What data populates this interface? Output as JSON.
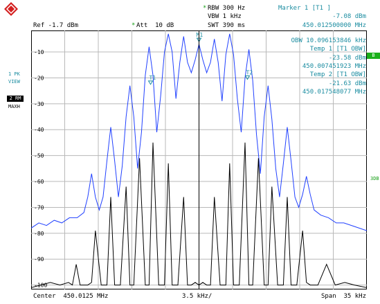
{
  "header": {
    "rbw_star": "*",
    "rbw": "RBW 300 Hz",
    "vbw": "VBW 1 kHz",
    "swt": "SWT 390 ms",
    "ref": "Ref -1.7 dBm",
    "att_star": "*",
    "att": "Att  10 dB"
  },
  "marker": {
    "title": "Marker 1 [T1 ]",
    "level": "-7.08 dBm",
    "freq": "450.012500000 MHz"
  },
  "obw": {
    "line1": "OBW 10.096153846 kHz",
    "line2": "Temp 1 [T1 OBW]",
    "line3": "-23.58 dBm",
    "line4": "450.007451923 MHz",
    "line5": "Temp 2 [T1 OBW]",
    "line6": "-21.63 dBm",
    "line7": "450.017548077 MHz"
  },
  "left_labels": {
    "trace1_a": "1 PK",
    "trace1_b": "VIEW",
    "trace2_a": "2 RM",
    "trace2_b": "MAXH"
  },
  "right_labels": {
    "b": "B",
    "db": "3DB"
  },
  "footer": {
    "center": "Center  450.0125 MHz",
    "div": "3.5 kHz/",
    "span": "Span  35 kHz"
  },
  "chart_data": {
    "type": "line",
    "title": "",
    "xlabel": "",
    "ylabel": "",
    "xlim": [
      -17.5,
      17.5
    ],
    "ylim": [
      -101.7,
      -1.7
    ],
    "y_ticks": [
      -10,
      -20,
      -30,
      -40,
      -50,
      -60,
      -70,
      -80,
      -90,
      -100
    ],
    "y_tick_labels": [
      "-10",
      "-20",
      "-30",
      "-40",
      "-50",
      "-60",
      "-70",
      "-80",
      "-90",
      "-100"
    ],
    "grid": true,
    "series": [
      {
        "name": "1 PK VIEW",
        "color": "#2040ff",
        "x": [
          -17.5,
          -16.7,
          -15.9,
          -15.1,
          -14.3,
          -13.5,
          -12.7,
          -12.0,
          -11.6,
          -11.2,
          -10.8,
          -10.4,
          -10.0,
          -9.6,
          -9.2,
          -8.8,
          -8.4,
          -8.0,
          -7.6,
          -7.2,
          -6.8,
          -6.4,
          -6.0,
          -5.6,
          -5.2,
          -4.8,
          -4.4,
          -4.0,
          -3.6,
          -3.2,
          -2.8,
          -2.4,
          -2.0,
          -1.6,
          -1.2,
          -0.8,
          -0.4,
          0.0,
          0.4,
          0.8,
          1.2,
          1.6,
          2.0,
          2.4,
          2.8,
          3.2,
          3.6,
          4.0,
          4.4,
          4.8,
          5.2,
          5.6,
          6.0,
          6.4,
          6.8,
          7.2,
          7.6,
          8.0,
          8.4,
          8.8,
          9.2,
          9.6,
          10.0,
          10.4,
          10.8,
          11.2,
          11.6,
          12.0,
          12.7,
          13.5,
          14.3,
          15.1,
          15.9,
          16.7,
          17.5
        ],
        "y": [
          -78,
          -76,
          -77,
          -75,
          -76,
          -74,
          -74,
          -72,
          -66,
          -57,
          -66,
          -71,
          -66,
          -52,
          -39,
          -52,
          -66,
          -54,
          -35,
          -23,
          -35,
          -55,
          -41,
          -19,
          -8,
          -19,
          -41,
          -27,
          -10,
          -3,
          -10,
          -28,
          -14,
          -4,
          -14,
          -18,
          -13,
          -7,
          -13,
          -18,
          -14,
          -5,
          -14,
          -29,
          -11,
          -3,
          -11,
          -28,
          -41,
          -20,
          -9,
          -21,
          -42,
          -57,
          -35,
          -23,
          -36,
          -55,
          -66,
          -53,
          -39,
          -52,
          -66,
          -70,
          -65,
          -58,
          -65,
          -71,
          -73,
          -74,
          -76,
          -76,
          -77,
          -78,
          -79
        ]
      },
      {
        "name": "2 RM MAXH",
        "color": "#000000",
        "x": [
          -17.5,
          -16.5,
          -15.5,
          -14.5,
          -13.6,
          -13.2,
          -12.8,
          -12.4,
          -11.6,
          -11.2,
          -10.8,
          -10.2,
          -9.6,
          -9.2,
          -8.8,
          -8.2,
          -7.6,
          -7.2,
          -6.8,
          -6.2,
          -5.6,
          -5.2,
          -4.8,
          -4.2,
          -3.6,
          -3.2,
          -2.8,
          -2.2,
          -1.6,
          -1.2,
          -0.8,
          -0.4,
          0.0,
          0.4,
          0.8,
          1.2,
          1.6,
          2.2,
          2.8,
          3.2,
          3.6,
          4.2,
          4.8,
          5.2,
          5.6,
          6.2,
          6.8,
          7.2,
          7.6,
          8.2,
          8.8,
          9.2,
          9.6,
          10.2,
          10.8,
          11.2,
          11.6,
          12.4,
          13.3,
          14.2,
          15.2,
          16.2,
          17.5
        ],
        "y": [
          -101,
          -100,
          -99,
          -100,
          -99,
          -100,
          -92,
          -100,
          -100,
          -99,
          -79,
          -100,
          -100,
          -66,
          -100,
          -100,
          -62,
          -100,
          -100,
          -51,
          -100,
          -100,
          -45,
          -100,
          -100,
          -53,
          -100,
          -100,
          -66,
          -100,
          -100,
          -99,
          -100,
          -99,
          -100,
          -100,
          -66,
          -100,
          -100,
          -53,
          -100,
          -100,
          -45,
          -100,
          -100,
          -51,
          -100,
          -100,
          -62,
          -100,
          -100,
          -66,
          -100,
          -100,
          -79,
          -99,
          -100,
          -100,
          -92,
          -100,
          -99,
          -100,
          -101
        ]
      }
    ],
    "markers": [
      {
        "label": "M1",
        "x": 0.0,
        "y": -7.08
      },
      {
        "label": "T1",
        "x": -5.048,
        "y": -23.58
      },
      {
        "label": "T2",
        "x": 5.048,
        "y": -21.63
      }
    ]
  }
}
